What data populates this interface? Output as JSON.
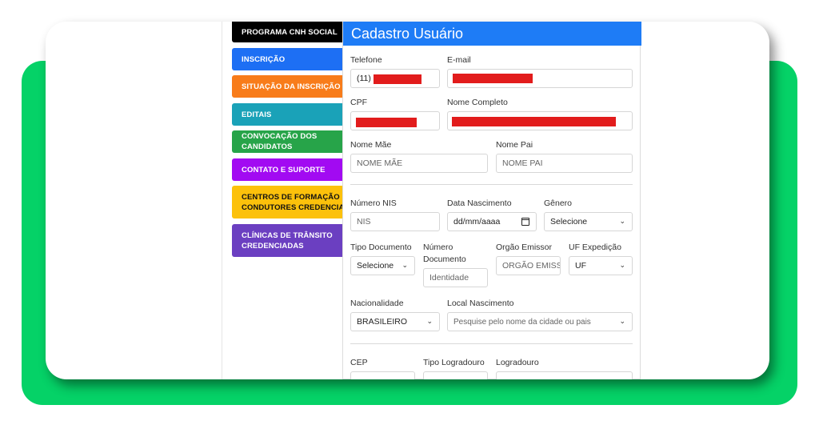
{
  "menu": {
    "items": [
      {
        "label": "PROGRAMA CNH SOCIAL",
        "color": "#000000"
      },
      {
        "label": "INSCRIÇÃO",
        "color": "#1d6ff4"
      },
      {
        "label": "SITUAÇÃO DA INSCRIÇÃO",
        "color": "#f87c1a"
      },
      {
        "label": "EDITAIS",
        "color": "#1aa2b8"
      },
      {
        "label": "CONVOCAÇÃO DOS CANDIDATOS",
        "color": "#27a449"
      },
      {
        "label": "CONTATO E SUPORTE",
        "color": "#a20af2"
      },
      {
        "label": "CENTROS DE FORMAÇÃO DE CONDUTORES CREDENCIADOS",
        "color": "#fcc10b"
      },
      {
        "label": "CLÍNICAS DE TRÂNSITO CREDENCIADAS",
        "color": "#6b3fc1"
      }
    ]
  },
  "form": {
    "title": "Cadastro Usuário",
    "telefone": {
      "label": "Telefone",
      "value": "(11)"
    },
    "email": {
      "label": "E-mail"
    },
    "cpf": {
      "label": "CPF"
    },
    "nome_completo": {
      "label": "Nome Completo"
    },
    "nome_mae": {
      "label": "Nome Mãe",
      "placeholder": "NOME MÃE"
    },
    "nome_pai": {
      "label": "Nome Pai",
      "placeholder": "NOME PAI"
    },
    "numero_nis": {
      "label": "Número NIS",
      "placeholder": "NIS"
    },
    "data_nascimento": {
      "label": "Data Nascimento",
      "value": "dd/mm/aaaa"
    },
    "genero": {
      "label": "Gênero",
      "value": "Selecione"
    },
    "tipo_documento": {
      "label": "Tipo Documento",
      "value": "Selecione"
    },
    "numero_documento": {
      "label_line1": "Número",
      "label_line2": "Documento",
      "placeholder": "Identidade"
    },
    "orgao_emissor": {
      "label": "Orgão Emissor",
      "placeholder": "ORGÃO EMISSOR"
    },
    "uf_expedicao": {
      "label": "UF Expedição",
      "value": "UF"
    },
    "nacionalidade": {
      "label": "Nacionalidade",
      "value": "BRASILEIRO"
    },
    "local_nascimento": {
      "label": "Local Nascimento",
      "placeholder": "Pesquise pelo nome da cidade ou pais"
    },
    "cep": {
      "label": "CEP"
    },
    "tipo_logradouro": {
      "label": "Tipo Logradouro"
    },
    "logradouro": {
      "label": "Logradouro"
    }
  },
  "colors": {
    "background_accent": "#05d267",
    "header": "#1e7cf6",
    "redaction": "#e21c1c"
  }
}
